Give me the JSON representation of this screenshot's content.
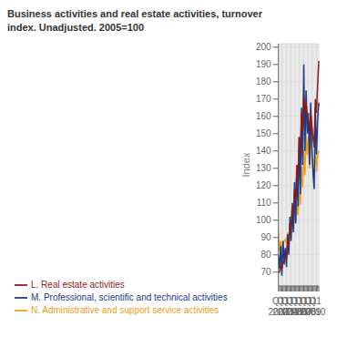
{
  "chart_data": {
    "type": "line",
    "title": "Business activities and real estate activities, turnover",
    "subtitle": "index. Unadjusted. 2005=100",
    "y_label": "Index",
    "categories": [
      "Q1\n2002",
      null,
      null,
      null,
      "Q1\n2003",
      null,
      null,
      null,
      "Q1\n2004",
      null,
      null,
      null,
      "Q1\n2005",
      null,
      null,
      null,
      "Q1\n2006",
      null,
      null,
      null,
      "Q1\n2007",
      null,
      null,
      null,
      "Q1\n2008",
      null,
      null,
      null,
      "Q1\n2009",
      null,
      null,
      null,
      "Q1\n2010",
      null,
      null,
      null
    ],
    "series": [
      {
        "name": "N. Administrative and support service activities",
        "color": "#e8a020",
        "values": [
          93,
          82,
          88,
          81,
          86,
          88,
          89,
          87,
          93,
          89,
          96,
          91,
          99,
          96,
          106,
          99,
          109,
          103,
          116,
          109,
          131,
          119,
          141,
          126,
          150,
          138,
          148,
          130,
          148,
          135,
          130,
          125,
          143,
          128,
          138,
          140
        ]
      },
      {
        "name": "M. Professional, scientific and technical activities",
        "color": "#1a3a8a",
        "values": [
          80,
          72,
          85,
          68,
          88,
          76,
          84,
          73,
          92,
          80,
          102,
          88,
          110,
          93,
          122,
          98,
          130,
          108,
          148,
          115,
          165,
          132,
          190,
          140,
          175,
          150,
          162,
          132,
          168,
          142,
          128,
          118,
          165,
          138,
          158,
          168
        ]
      },
      {
        "name": "L. Real estate activities",
        "color": "#8b1a1a",
        "values": [
          70,
          70,
          74,
          72,
          76,
          75,
          80,
          78,
          88,
          85,
          98,
          95,
          108,
          105,
          118,
          112,
          132,
          125,
          148,
          138,
          162,
          152,
          172,
          162,
          168,
          160,
          158,
          150,
          162,
          155,
          148,
          142,
          170,
          162,
          178,
          192
        ]
      }
    ],
    "ylim": [
      62,
      202
    ],
    "yticks": [
      70,
      80,
      90,
      100,
      110,
      120,
      130,
      140,
      150,
      160,
      170,
      180,
      190,
      200
    ],
    "grid": true,
    "legend": "bottom"
  }
}
